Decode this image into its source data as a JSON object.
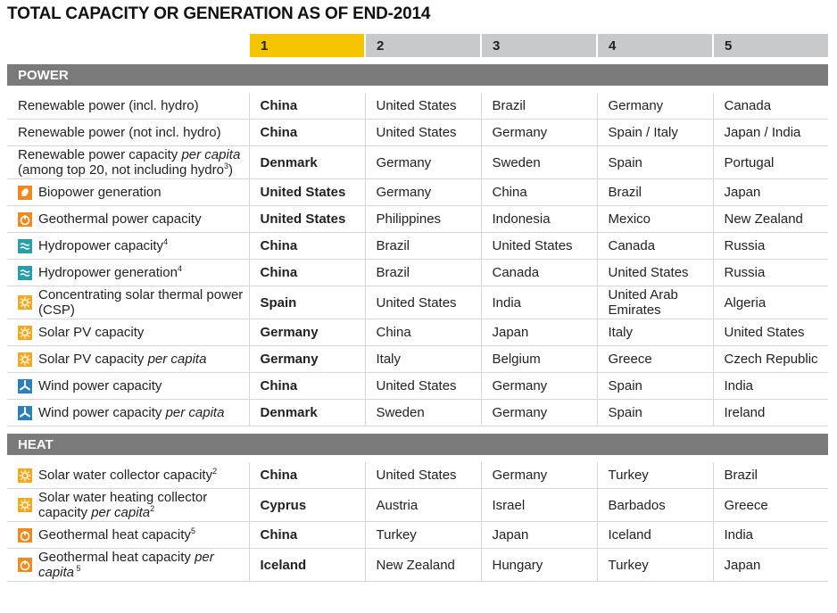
{
  "title": "TOTAL CAPACITY OR GENERATION AS OF END-2014",
  "columns": [
    "1",
    "2",
    "3",
    "4",
    "5"
  ],
  "sections": [
    {
      "name": "POWER",
      "rows": [
        {
          "label": [
            {
              "text": "Renewable power (incl. hydro)"
            }
          ],
          "cells": [
            "China",
            "United States",
            "Brazil",
            "Germany",
            "Canada"
          ]
        },
        {
          "label": [
            {
              "text": "Renewable power (not incl. hydro)"
            }
          ],
          "cells": [
            "China",
            "United States",
            "Germany",
            "Spain / Italy",
            "Japan / India"
          ]
        },
        {
          "label": [
            {
              "text": "Renewable power capacity "
            },
            {
              "text": "per capita",
              "em": true
            },
            {
              "text": " (among top 20, not including hydro"
            },
            {
              "text": "3",
              "sup": true
            },
            {
              "text": ")"
            }
          ],
          "cells": [
            "Denmark",
            "Germany",
            "Sweden",
            "Spain",
            "Portugal"
          ]
        },
        {
          "icon": "bio",
          "label": [
            {
              "text": "Biopower generation"
            }
          ],
          "cells": [
            "United States",
            "Germany",
            "China",
            "Brazil",
            "Japan"
          ]
        },
        {
          "icon": "geo",
          "label": [
            {
              "text": "Geothermal power capacity"
            }
          ],
          "cells": [
            "United States",
            "Philippines",
            "Indonesia",
            "Mexico",
            "New Zealand"
          ]
        },
        {
          "icon": "hydro",
          "label": [
            {
              "text": "Hydropower capacity"
            },
            {
              "text": "4",
              "sup": true
            }
          ],
          "cells": [
            "China",
            "Brazil",
            "United States",
            "Canada",
            "Russia"
          ]
        },
        {
          "icon": "hydro",
          "label": [
            {
              "text": "Hydropower generation"
            },
            {
              "text": "4",
              "sup": true
            }
          ],
          "cells": [
            "China",
            "Brazil",
            "Canada",
            "United States",
            "Russia"
          ]
        },
        {
          "icon": "solar",
          "label": [
            {
              "text": "Concentrating solar thermal power (CSP)"
            }
          ],
          "cells": [
            "Spain",
            "United States",
            "India",
            "United Arab Emirates",
            "Algeria"
          ]
        },
        {
          "icon": "solar",
          "label": [
            {
              "text": "Solar PV capacity"
            }
          ],
          "cells": [
            "Germany",
            "China",
            "Japan",
            "Italy",
            "United States"
          ]
        },
        {
          "icon": "solar",
          "label": [
            {
              "text": "Solar PV capacity "
            },
            {
              "text": "per capita",
              "em": true
            }
          ],
          "cells": [
            "Germany",
            "Italy",
            "Belgium",
            "Greece",
            "Czech Republic"
          ]
        },
        {
          "icon": "wind",
          "label": [
            {
              "text": "Wind power capacity"
            }
          ],
          "cells": [
            "China",
            "United States",
            "Germany",
            "Spain",
            "India"
          ]
        },
        {
          "icon": "wind",
          "label": [
            {
              "text": "Wind power capacity "
            },
            {
              "text": "per capita",
              "em": true
            }
          ],
          "cells": [
            "Denmark",
            "Sweden",
            "Germany",
            "Spain",
            "Ireland"
          ]
        }
      ]
    },
    {
      "name": "HEAT",
      "rows": [
        {
          "icon": "solar",
          "label": [
            {
              "text": "Solar water collector capacity"
            },
            {
              "text": "2",
              "sup": true
            }
          ],
          "cells": [
            "China",
            "United States",
            "Germany",
            "Turkey",
            "Brazil"
          ]
        },
        {
          "icon": "solar",
          "label": [
            {
              "text": "Solar water heating collector capacity "
            },
            {
              "text": "per capita",
              "em": true
            },
            {
              "text": "2",
              "sup": true
            }
          ],
          "cells": [
            "Cyprus",
            "Austria",
            "Israel",
            "Barbados",
            "Greece"
          ]
        },
        {
          "icon": "geo",
          "label": [
            {
              "text": "Geothermal heat capacity"
            },
            {
              "text": "5",
              "sup": true
            }
          ],
          "cells": [
            "China",
            "Turkey",
            "Japan",
            "Iceland",
            "India"
          ]
        },
        {
          "icon": "geo",
          "label": [
            {
              "text": "Geothermal heat capacity "
            },
            {
              "text": "per capita",
              "em": true
            },
            {
              "text": " 5",
              "sup": true
            }
          ],
          "cells": [
            "Iceland",
            "New Zealand",
            "Hungary",
            "Turkey",
            "Japan"
          ]
        }
      ]
    }
  ]
}
